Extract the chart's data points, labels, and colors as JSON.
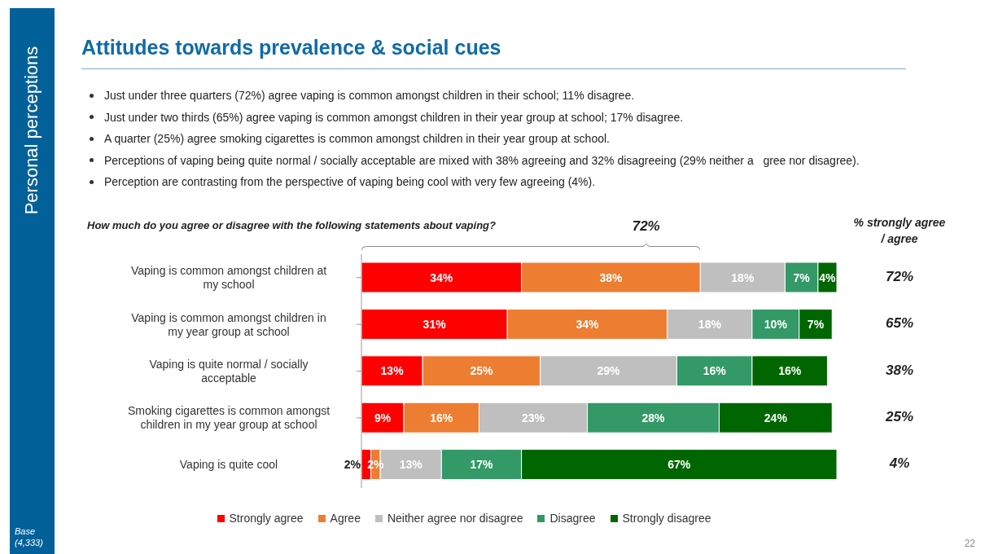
{
  "chart_data": {
    "type": "bar",
    "orientation": "horizontal",
    "stacked": true,
    "legend": "bottom",
    "title": "Attitudes towards prevalence & social cues",
    "subtitle": "How much do you agree or disagree with the following statements about vaping?",
    "categories": [
      "Vaping is common amongst children at my school",
      "Vaping is common amongst children in my year group at school",
      "Vaping is quite normal / socially acceptable",
      "Smoking cigarettes is common amongst children in my year group at school",
      "Vaping is quite cool"
    ],
    "series": [
      {
        "name": "Strongly agree",
        "color": "#ff0000",
        "values": [
          34,
          31,
          13,
          9,
          2
        ],
        "value_labels": [
          "34%",
          "31%",
          "13%",
          "9%",
          "2%"
        ]
      },
      {
        "name": "Agree",
        "color": "#ed7d31",
        "values": [
          38,
          34,
          25,
          16,
          2
        ],
        "value_labels": [
          "38%",
          "34%",
          "25%",
          "16%",
          "2%"
        ]
      },
      {
        "name": "Neither agree nor disagree",
        "color": "#bfbfbf",
        "values": [
          18,
          18,
          29,
          23,
          13
        ],
        "value_labels": [
          "18%",
          "18%",
          "29%",
          "23%",
          "13%"
        ]
      },
      {
        "name": "Disagree",
        "color": "#339966",
        "values": [
          7,
          10,
          16,
          28,
          17
        ],
        "value_labels": [
          "7%",
          "10%",
          "16%",
          "28%",
          "17%"
        ]
      },
      {
        "name": "Strongly disagree",
        "color": "#006600",
        "values": [
          4,
          7,
          16,
          24,
          67
        ],
        "value_labels": [
          "4%",
          "7%",
          "16%",
          "24%",
          "67%"
        ]
      }
    ],
    "annotations": [
      "Just under three quarters (72%) agree vaping is common amongst children in their school; 11% disagree.",
      "Just under two thirds (65%) agree vaping is common amongst children in their year group at school; 17% disagree.",
      "A quarter (25%) agree smoking cigarettes is common amongst children in their year group at school.",
      "Perceptions of vaping being quite normal / socially acceptable are mixed with 38% agreeing and 32% disagreeing (29% neither a   gree nor disagree).",
      "Perception are contrasting from the perspective of vaping being cool with very few agreeing (4%).",
      "Personal perceptions",
      "Base (4,333)",
      "22",
      "% strongly agree / agree",
      "72%",
      "65%",
      "38%",
      "25%",
      "4%",
      "72%"
    ]
  }
}
